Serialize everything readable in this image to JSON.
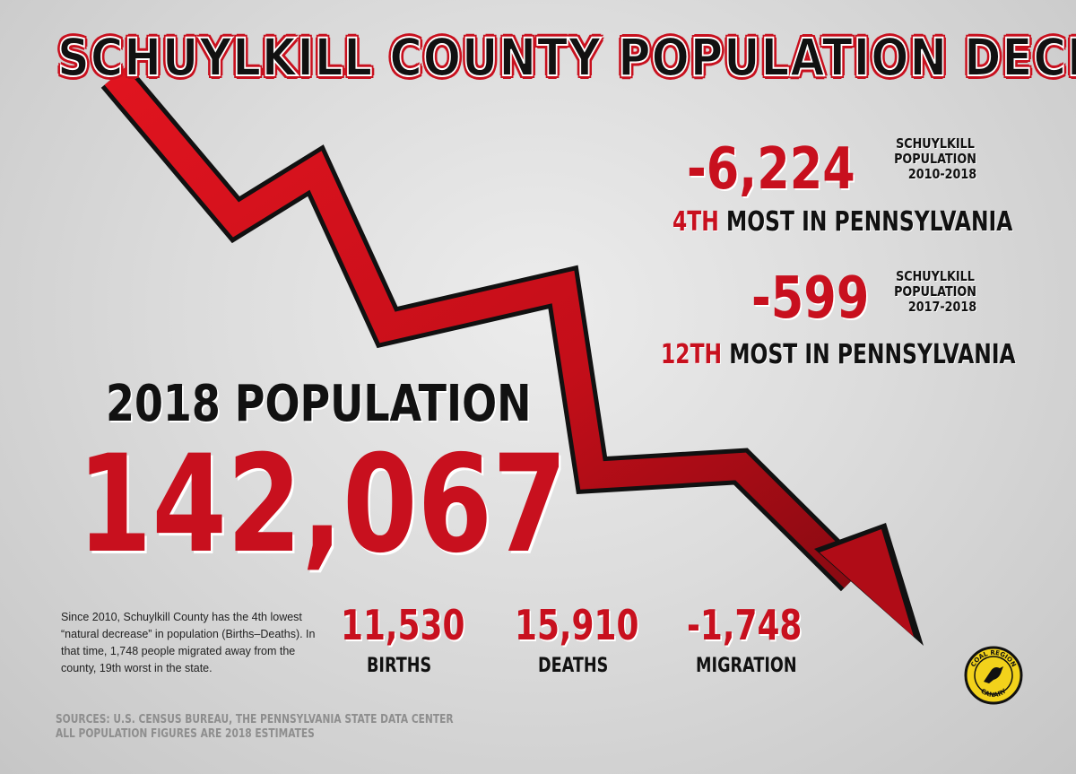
{
  "title": "SCHUYLKILL COUNTY POPULATION DECLINE",
  "stats": [
    {
      "value": "-6,224",
      "caption": [
        "SCHUYLKILL",
        "POPULATION",
        "2010-2018"
      ],
      "rank_red": "4TH",
      "rank_rest": " MOST IN PENNSYLVANIA"
    },
    {
      "value": "-599",
      "caption": [
        "SCHUYLKILL",
        "POPULATION",
        "2017-2018"
      ],
      "rank_red": "12TH",
      "rank_rest": " MOST IN PENNSYLVANIA"
    }
  ],
  "population": {
    "label": "2018 POPULATION",
    "value": "142,067"
  },
  "note": "Since 2010, Schuylkill County has the 4th lowest “natural decrease” in population (Births–Deaths). In that time, 1,748 people migrated away from the county, 19th worst in the state.",
  "components": [
    {
      "value": "11,530",
      "label": "BIRTHS"
    },
    {
      "value": "15,910",
      "label": "DEATHS"
    },
    {
      "value": "-1,748",
      "label": "MIGRATION"
    }
  ],
  "sources": [
    "SOURCES: U.S. CENSUS BUREAU, THE PENNSYLVANIA STATE DATA CENTER",
    "ALL POPULATION FIGURES ARE 2018 ESTIMATES"
  ],
  "logo": {
    "top": "COAL REGION",
    "bottom": "CANARY"
  },
  "colors": {
    "accent": "#c8101e",
    "text": "#111111",
    "background": "#d8d8d8"
  }
}
